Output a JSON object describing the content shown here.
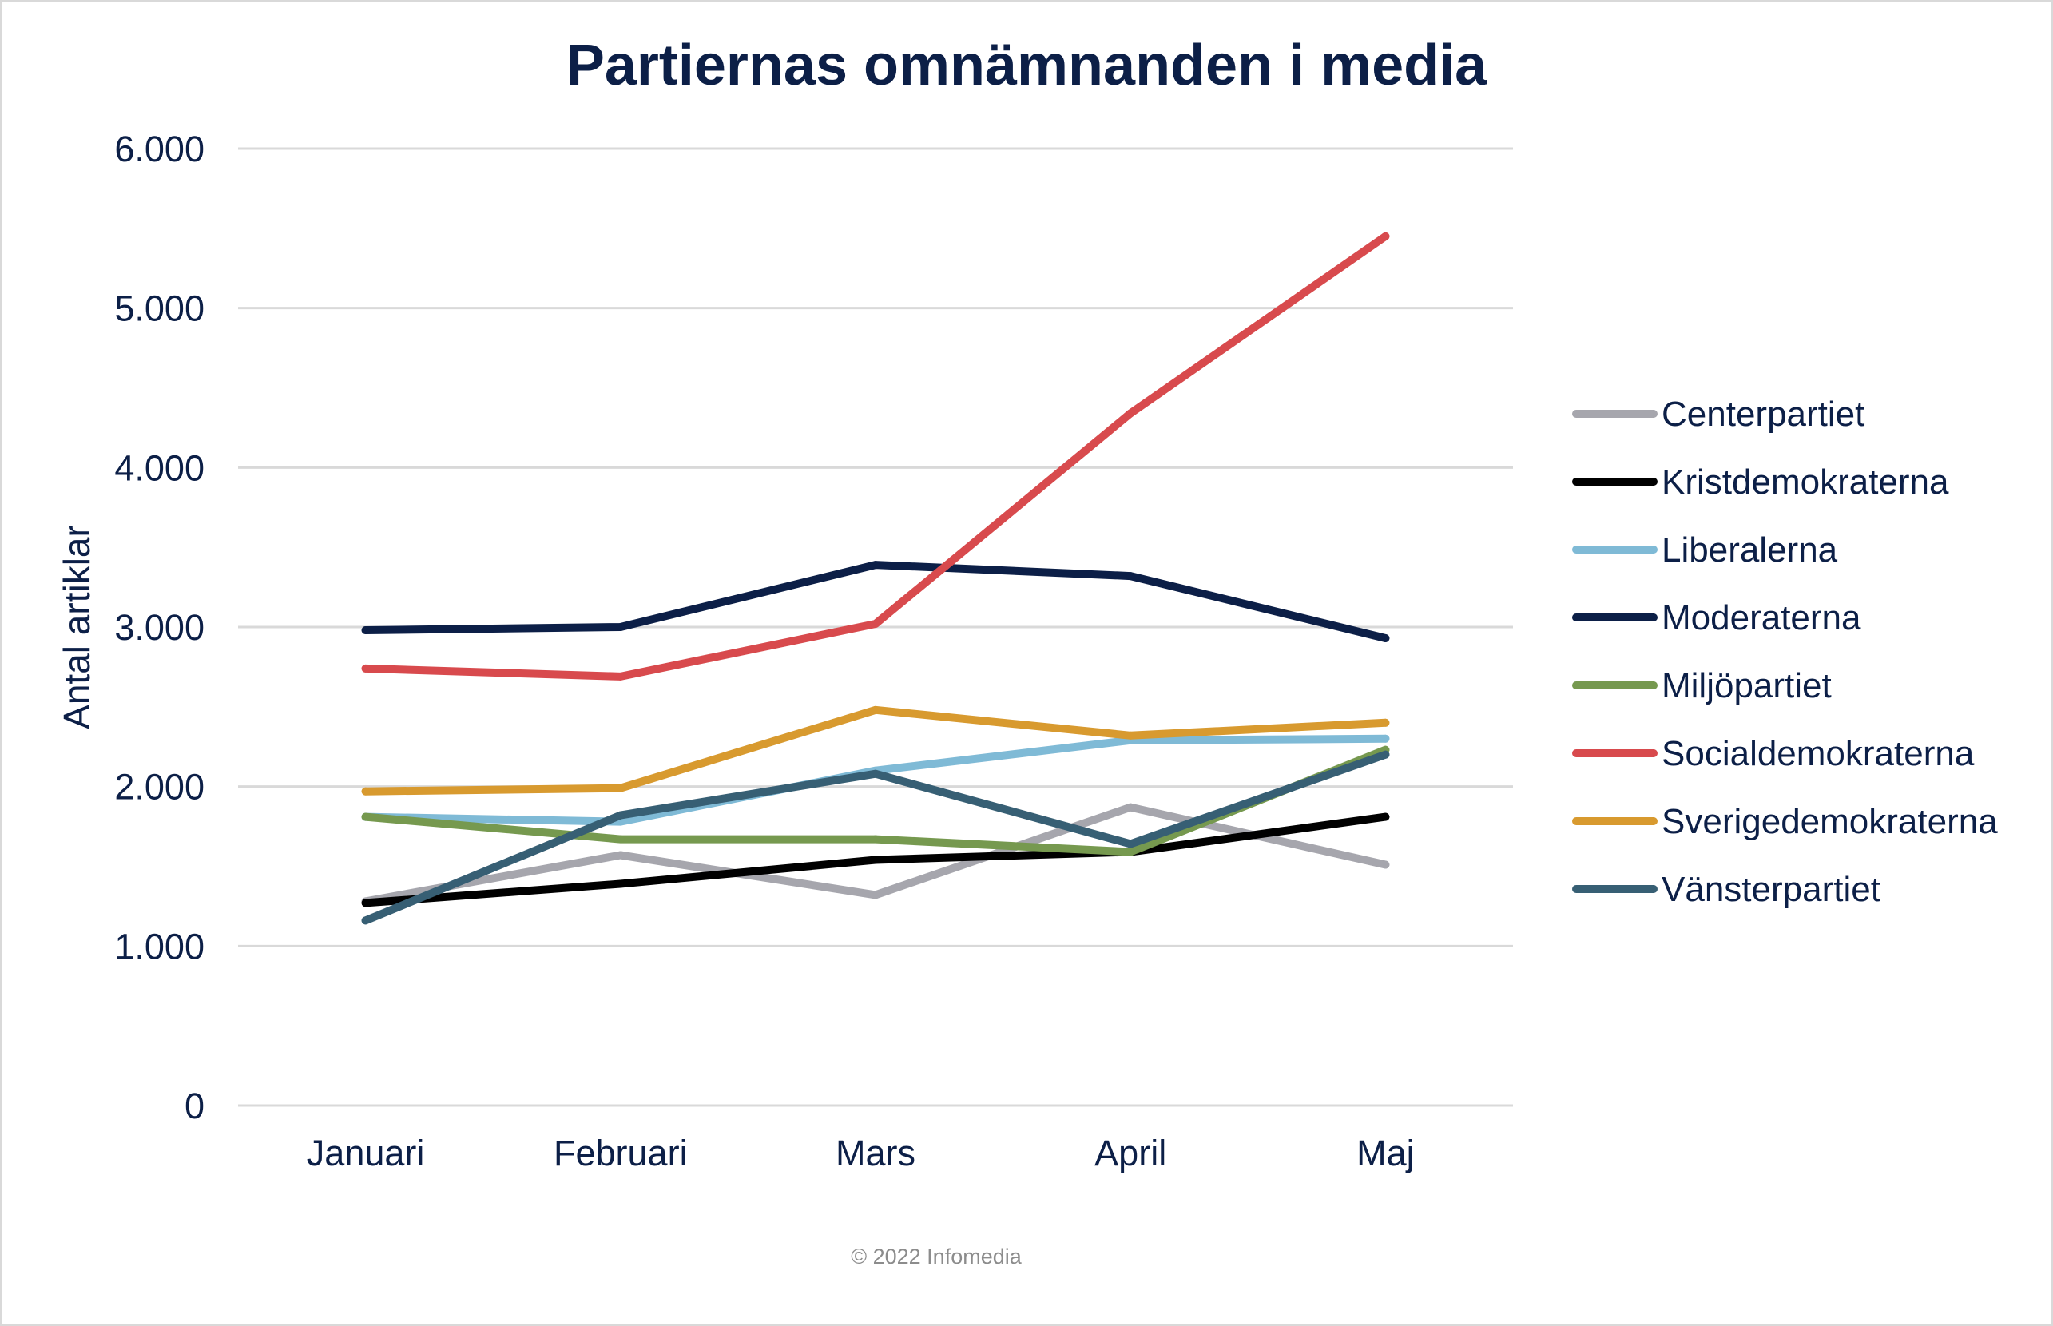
{
  "chart_data": {
    "type": "line",
    "title": "Partiernas omnämnanden i media",
    "xlabel": "",
    "ylabel": "Antal artiklar",
    "categories": [
      "Januari",
      "Februari",
      "Mars",
      "April",
      "Maj"
    ],
    "ylim": [
      0,
      6000
    ],
    "yticks": [
      0,
      1000,
      2000,
      3000,
      4000,
      5000,
      6000
    ],
    "ytick_labels": [
      "0",
      "1.000",
      "2.000",
      "3.000",
      "4.000",
      "5.000",
      "6.000"
    ],
    "grid": true,
    "legend_position": "right",
    "series": [
      {
        "name": "Centerpartiet",
        "color": "#a6a6ad",
        "values": [
          1280,
          1570,
          1320,
          1870,
          1510
        ]
      },
      {
        "name": "Kristdemokraterna",
        "color": "#000000",
        "values": [
          1270,
          1390,
          1540,
          1590,
          1810
        ]
      },
      {
        "name": "Liberalerna",
        "color": "#7fbad6",
        "values": [
          1810,
          1780,
          2100,
          2290,
          2300
        ]
      },
      {
        "name": "Moderaterna",
        "color": "#0c1f47",
        "values": [
          2980,
          3000,
          3390,
          3320,
          2930
        ]
      },
      {
        "name": "Miljöpartiet",
        "color": "#76994f",
        "values": [
          1810,
          1670,
          1670,
          1590,
          2230
        ]
      },
      {
        "name": "Socialdemokraterna",
        "color": "#d84a4d",
        "values": [
          2740,
          2690,
          3020,
          4340,
          5450
        ]
      },
      {
        "name": "Sverigedemokraterna",
        "color": "#d89a2f",
        "values": [
          1970,
          1990,
          2480,
          2320,
          2400
        ]
      },
      {
        "name": "Vänsterpartiet",
        "color": "#375f74",
        "values": [
          1160,
          1820,
          2080,
          1640,
          2200
        ]
      }
    ]
  },
  "footer": {
    "copyright": "© 2022 Infomedia"
  }
}
